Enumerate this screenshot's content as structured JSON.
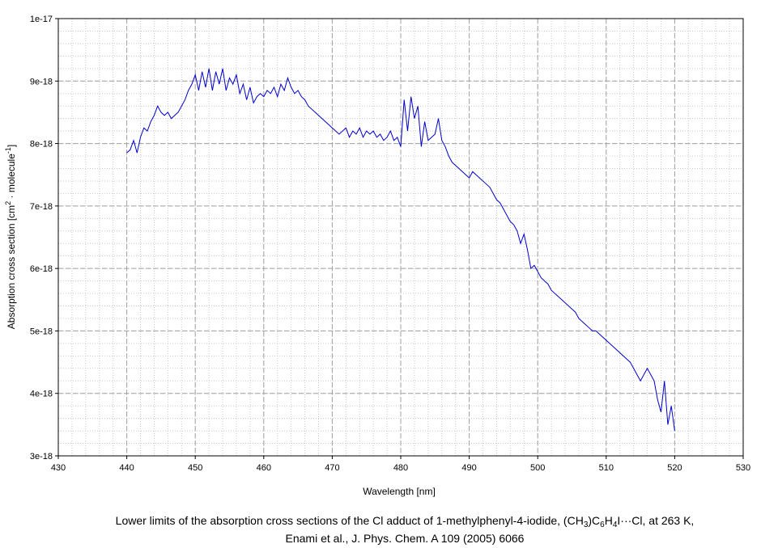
{
  "chart_data": {
    "type": "line",
    "xlabel": "Wavelength [nm]",
    "ylabel": "Absorption cross section [cm2 · molecule-1]",
    "ylabel_parts": {
      "a": "Absorption cross section [cm",
      "b": "2",
      "c": " · molecule",
      "d": "-1",
      "e": "]"
    },
    "xlim": [
      430,
      530
    ],
    "ylim": [
      3e-18,
      1e-17
    ],
    "x_ticks": [
      "430",
      "440",
      "450",
      "460",
      "470",
      "480",
      "490",
      "500",
      "510",
      "520",
      "530"
    ],
    "y_ticks": [
      "3e-18",
      "4e-18",
      "5e-18",
      "6e-18",
      "7e-18",
      "8e-18",
      "9e-18",
      "1e-17"
    ],
    "grid": true,
    "line_color": "#0000cc",
    "series": [
      {
        "x": [
          440.0,
          440.5,
          441.0,
          441.5,
          442.0,
          442.5,
          443.0,
          443.5,
          444.0,
          444.5,
          445.0,
          445.5,
          446.0,
          446.5,
          447.0,
          447.5,
          448.0,
          448.5,
          449.0,
          449.5,
          450.0,
          450.5,
          451.0,
          451.5,
          452.0,
          452.5,
          453.0,
          453.5,
          454.0,
          454.5,
          455.0,
          455.5,
          456.0,
          456.5,
          457.0,
          457.5,
          458.0,
          458.5,
          459.0,
          459.5,
          460.0,
          460.5,
          461.0,
          461.5,
          462.0,
          462.5,
          463.0,
          463.5,
          464.0,
          464.5,
          465.0,
          465.5,
          466.0,
          466.5,
          467.0,
          467.5,
          468.0,
          468.5,
          469.0,
          469.5,
          470.0,
          470.5,
          471.0,
          471.5,
          472.0,
          472.5,
          473.0,
          473.5,
          474.0,
          474.5,
          475.0,
          475.5,
          476.0,
          476.5,
          477.0,
          477.5,
          478.0,
          478.5,
          479.0,
          479.5,
          480.0,
          480.5,
          481.0,
          481.5,
          482.0,
          482.5,
          483.0,
          483.5,
          484.0,
          484.5,
          485.0,
          485.5,
          486.0,
          486.5,
          487.0,
          487.5,
          488.0,
          488.5,
          489.0,
          489.5,
          490.0,
          490.5,
          491.0,
          491.5,
          492.0,
          492.5,
          493.0,
          493.5,
          494.0,
          494.5,
          495.0,
          495.5,
          496.0,
          496.5,
          497.0,
          497.5,
          498.0,
          498.5,
          499.0,
          499.5,
          500.0,
          500.5,
          501.0,
          501.5,
          502.0,
          502.5,
          503.0,
          503.5,
          504.0,
          504.5,
          505.0,
          505.5,
          506.0,
          506.5,
          507.0,
          507.5,
          508.0,
          508.5,
          509.0,
          509.5,
          510.0,
          510.5,
          511.0,
          511.5,
          512.0,
          512.5,
          513.0,
          513.5,
          514.0,
          514.5,
          515.0,
          515.5,
          516.0,
          516.5,
          517.0,
          517.5,
          518.0,
          518.5,
          519.0,
          519.5,
          520.0
        ],
        "y": [
          7.85e-18,
          7.9e-18,
          8.05e-18,
          7.85e-18,
          8.1e-18,
          8.25e-18,
          8.2e-18,
          8.35e-18,
          8.45e-18,
          8.6e-18,
          8.5e-18,
          8.45e-18,
          8.5e-18,
          8.4e-18,
          8.45e-18,
          8.5e-18,
          8.6e-18,
          8.7e-18,
          8.85e-18,
          8.95e-18,
          9.1e-18,
          8.85e-18,
          9.15e-18,
          8.9e-18,
          9.2e-18,
          8.85e-18,
          9.15e-18,
          8.95e-18,
          9.2e-18,
          8.85e-18,
          9.05e-18,
          8.95e-18,
          9.1e-18,
          8.8e-18,
          8.95e-18,
          8.7e-18,
          8.9e-18,
          8.65e-18,
          8.75e-18,
          8.8e-18,
          8.75e-18,
          8.85e-18,
          8.8e-18,
          8.9e-18,
          8.75e-18,
          8.95e-18,
          8.85e-18,
          9.05e-18,
          8.9e-18,
          8.8e-18,
          8.85e-18,
          8.75e-18,
          8.7e-18,
          8.6e-18,
          8.55e-18,
          8.5e-18,
          8.45e-18,
          8.4e-18,
          8.35e-18,
          8.3e-18,
          8.25e-18,
          8.2e-18,
          8.15e-18,
          8.2e-18,
          8.25e-18,
          8.1e-18,
          8.2e-18,
          8.15e-18,
          8.25e-18,
          8.1e-18,
          8.2e-18,
          8.15e-18,
          8.2e-18,
          8.1e-18,
          8.15e-18,
          8.05e-18,
          8.1e-18,
          8.2e-18,
          8.05e-18,
          8.1e-18,
          7.95e-18,
          8.7e-18,
          8.2e-18,
          8.75e-18,
          8.4e-18,
          8.6e-18,
          7.95e-18,
          8.35e-18,
          8.05e-18,
          8.1e-18,
          8.15e-18,
          8.4e-18,
          8.05e-18,
          7.95e-18,
          7.8e-18,
          7.7e-18,
          7.65e-18,
          7.6e-18,
          7.55e-18,
          7.5e-18,
          7.45e-18,
          7.55e-18,
          7.5e-18,
          7.45e-18,
          7.4e-18,
          7.35e-18,
          7.3e-18,
          7.2e-18,
          7.1e-18,
          7.05e-18,
          6.95e-18,
          6.85e-18,
          6.75e-18,
          6.7e-18,
          6.6e-18,
          6.4e-18,
          6.55e-18,
          6.3e-18,
          6e-18,
          6.05e-18,
          5.95e-18,
          5.85e-18,
          5.8e-18,
          5.75e-18,
          5.65e-18,
          5.6e-18,
          5.55e-18,
          5.5e-18,
          5.45e-18,
          5.4e-18,
          5.35e-18,
          5.3e-18,
          5.2e-18,
          5.15e-18,
          5.1e-18,
          5.05e-18,
          5e-18,
          5e-18,
          4.95e-18,
          4.9e-18,
          4.85e-18,
          4.8e-18,
          4.75e-18,
          4.7e-18,
          4.65e-18,
          4.6e-18,
          4.55e-18,
          4.5e-18,
          4.4e-18,
          4.3e-18,
          4.2e-18,
          4.3e-18,
          4.4e-18,
          4.3e-18,
          4.2e-18,
          3.9e-18,
          3.7e-18,
          4.2e-18,
          3.5e-18,
          3.8e-18,
          3.4e-18
        ]
      }
    ]
  },
  "caption": {
    "line1": {
      "p1": "Lower limits of the absorption cross sections of the Cl adduct of 1-methylphenyl-4-iodide, (CH",
      "s1": "3",
      "p2": ")C",
      "s2": "6",
      "p3": "H",
      "s3": "4",
      "p4": "I···Cl, at 263 K,"
    },
    "line2": "Enami et al., J. Phys. Chem. A 109 (2005) 6066"
  }
}
